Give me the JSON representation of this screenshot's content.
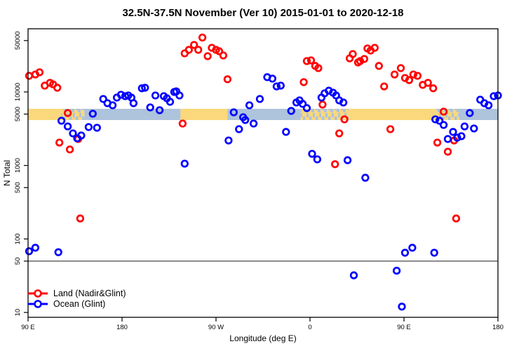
{
  "title": "32.5N-37.5N November (Ver 10)   2015-01-01 to 2020-12-18",
  "chart_data": {
    "type": "scatter",
    "title": "32.5N-37.5N November (Ver 10)   2015-01-01 to 2020-12-18",
    "xlabel": "Longitude (deg E)",
    "ylabel": "N Total",
    "x_axis": {
      "range_plot_degrees": [
        90,
        540
      ],
      "note": "longitude wraps eastward: 90E to 180 to 90W to 0 to 90E to 180",
      "ticks": [
        {
          "lon": 90,
          "label": "90 E"
        },
        {
          "lon": 180,
          "label": "180"
        },
        {
          "lon": 270,
          "label": "90 W"
        },
        {
          "lon": 360,
          "label": "0"
        },
        {
          "lon": 450,
          "label": "90 E"
        },
        {
          "lon": 540,
          "label": "180"
        }
      ]
    },
    "y_axis": {
      "scale": "log",
      "ticks": [
        50000,
        10000,
        5000,
        1000,
        500,
        100,
        50,
        10
      ],
      "range": [
        8.6,
        72000
      ]
    },
    "reference_line_y": 50,
    "grid": false,
    "legend_position": "bottom-left",
    "land_ocean_band": {
      "value_range": [
        4200,
        5900
      ],
      "land_color": "#FBD87B",
      "ocean_color": "#AEC3DC",
      "segments": [
        {
          "from": 90,
          "to": 122,
          "surface": "land"
        },
        {
          "from": 122,
          "to": 144,
          "surface": "mixed"
        },
        {
          "from": 144,
          "to": 236,
          "surface": "ocean"
        },
        {
          "from": 236,
          "to": 281,
          "surface": "land"
        },
        {
          "from": 281,
          "to": 351,
          "surface": "ocean"
        },
        {
          "from": 351,
          "to": 397,
          "surface": "mixed"
        },
        {
          "from": 397,
          "to": 481,
          "surface": "land"
        },
        {
          "from": 481,
          "to": 503,
          "surface": "mixed"
        },
        {
          "from": 503,
          "to": 540,
          "surface": "ocean"
        }
      ]
    },
    "series": [
      {
        "name": "Land (Nadir&Glint)",
        "color": "#FF0000",
        "points": [
          [
            91,
            16600
          ],
          [
            97,
            17300
          ],
          [
            101,
            18500
          ],
          [
            106,
            12200
          ],
          [
            111,
            13300
          ],
          [
            114,
            12700
          ],
          [
            118,
            11400
          ],
          [
            128,
            5170
          ],
          [
            120,
            2050
          ],
          [
            130,
            1650
          ],
          [
            138,
            2290
          ],
          [
            140,
            190
          ],
          [
            238,
            3720
          ],
          [
            240,
            33500
          ],
          [
            244,
            37400
          ],
          [
            249,
            43600
          ],
          [
            253,
            37400
          ],
          [
            257,
            55000
          ],
          [
            262,
            30700
          ],
          [
            266,
            39900
          ],
          [
            270,
            37400
          ],
          [
            273,
            35800
          ],
          [
            277,
            31400
          ],
          [
            281,
            14900
          ],
          [
            354,
            13600
          ],
          [
            357,
            26300
          ],
          [
            361,
            26900
          ],
          [
            365,
            22600
          ],
          [
            368,
            21100
          ],
          [
            372,
            6730
          ],
          [
            384,
            1040
          ],
          [
            388,
            2730
          ],
          [
            393,
            4240
          ],
          [
            398,
            28700
          ],
          [
            401,
            32800
          ],
          [
            406,
            25200
          ],
          [
            408,
            26300
          ],
          [
            412,
            28100
          ],
          [
            415,
            39100
          ],
          [
            418,
            36600
          ],
          [
            422,
            39900
          ],
          [
            426,
            22600
          ],
          [
            431,
            11900
          ],
          [
            437,
            3120
          ],
          [
            441,
            17300
          ],
          [
            447,
            21100
          ],
          [
            451,
            15500
          ],
          [
            455,
            14500
          ],
          [
            459,
            17300
          ],
          [
            463,
            16600
          ],
          [
            468,
            12500
          ],
          [
            473,
            13300
          ],
          [
            478,
            11200
          ],
          [
            482,
            2050
          ],
          [
            488,
            5400
          ],
          [
            492,
            1540
          ],
          [
            498,
            2190
          ],
          [
            500,
            190
          ]
        ]
      },
      {
        "name": "Ocean (Glint)",
        "color": "#0000FF",
        "points": [
          [
            91,
            68
          ],
          [
            97,
            76
          ],
          [
            119,
            66
          ],
          [
            122,
            4060
          ],
          [
            128,
            3400
          ],
          [
            133,
            2730
          ],
          [
            137,
            2340
          ],
          [
            141,
            2560
          ],
          [
            148,
            3330
          ],
          [
            152,
            5060
          ],
          [
            156,
            3260
          ],
          [
            162,
            8030
          ],
          [
            166,
            7030
          ],
          [
            171,
            6580
          ],
          [
            175,
            8390
          ],
          [
            179,
            9160
          ],
          [
            183,
            8760
          ],
          [
            186,
            8960
          ],
          [
            189,
            8390
          ],
          [
            191,
            7030
          ],
          [
            199,
            11200
          ],
          [
            202,
            11400
          ],
          [
            207,
            6160
          ],
          [
            212,
            8960
          ],
          [
            216,
            5650
          ],
          [
            220,
            8760
          ],
          [
            223,
            8200
          ],
          [
            226,
            7350
          ],
          [
            230,
            10000
          ],
          [
            232,
            10200
          ],
          [
            235,
            8960
          ],
          [
            240,
            1060
          ],
          [
            282,
            2190
          ],
          [
            287,
            5290
          ],
          [
            292,
            3120
          ],
          [
            296,
            4530
          ],
          [
            298,
            4150
          ],
          [
            302,
            6580
          ],
          [
            306,
            3720
          ],
          [
            312,
            8030
          ],
          [
            319,
            15900
          ],
          [
            324,
            15200
          ],
          [
            328,
            11900
          ],
          [
            332,
            12200
          ],
          [
            337,
            2860
          ],
          [
            342,
            5520
          ],
          [
            347,
            7190
          ],
          [
            350,
            7680
          ],
          [
            353,
            6880
          ],
          [
            357,
            6030
          ],
          [
            362,
            1440
          ],
          [
            367,
            1210
          ],
          [
            371,
            8390
          ],
          [
            374,
            9570
          ],
          [
            378,
            10400
          ],
          [
            382,
            9780
          ],
          [
            385,
            8960
          ],
          [
            388,
            7680
          ],
          [
            392,
            7190
          ],
          [
            396,
            1180
          ],
          [
            402,
            32
          ],
          [
            413,
            680
          ],
          [
            443,
            37
          ],
          [
            448,
            12
          ],
          [
            451,
            65
          ],
          [
            458,
            76
          ],
          [
            479,
            65
          ],
          [
            480,
            4240
          ],
          [
            484,
            4060
          ],
          [
            488,
            3560
          ],
          [
            492,
            2290
          ],
          [
            497,
            2860
          ],
          [
            501,
            2390
          ],
          [
            505,
            2500
          ],
          [
            508,
            3400
          ],
          [
            513,
            5170
          ],
          [
            517,
            3190
          ],
          [
            523,
            7850
          ],
          [
            527,
            7030
          ],
          [
            531,
            6580
          ],
          [
            536,
            8760
          ],
          [
            540,
            8960
          ]
        ]
      }
    ]
  }
}
